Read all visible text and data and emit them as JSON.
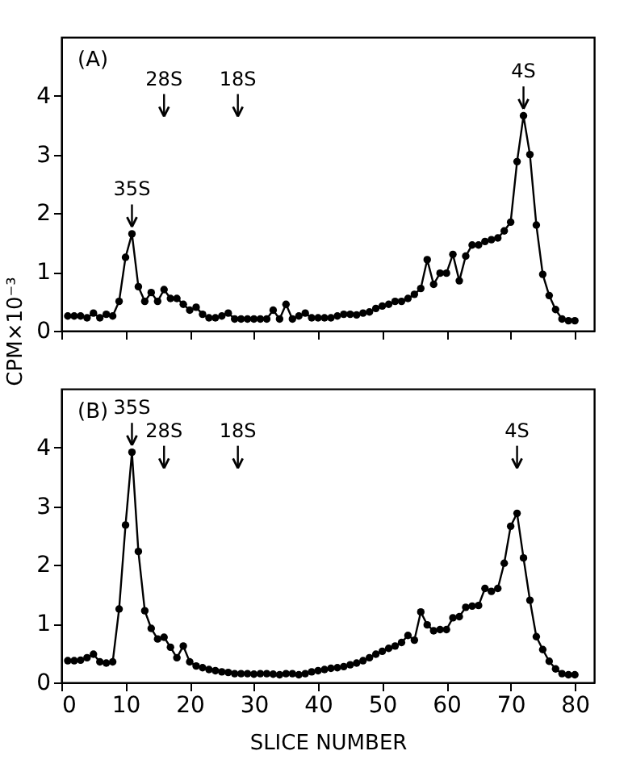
{
  "chart_data": [
    {
      "type": "line",
      "marker": "circle",
      "line_style": "solid",
      "grid": false,
      "tick_labels": "y",
      "ylabel": "CPM×10⁻³",
      "x": [
        1,
        2,
        3,
        4,
        5,
        6,
        7,
        8,
        9,
        10,
        11,
        12,
        13,
        14,
        15,
        16,
        17,
        18,
        19,
        20,
        21,
        22,
        23,
        24,
        25,
        26,
        27,
        28,
        29,
        30,
        31,
        32,
        33,
        34,
        35,
        36,
        37,
        38,
        39,
        40,
        41,
        42,
        43,
        44,
        45,
        46,
        47,
        48,
        49,
        50,
        51,
        52,
        53,
        54,
        55,
        56,
        57,
        58,
        59,
        60,
        61,
        62,
        63,
        64,
        65,
        66,
        67,
        68,
        69,
        70,
        71,
        72,
        73,
        74,
        75,
        76,
        77,
        78,
        79,
        80
      ],
      "series": [
        {
          "color": "#000000",
          "values": [
            0.25,
            0.25,
            0.25,
            0.22,
            0.3,
            0.22,
            0.28,
            0.25,
            0.5,
            1.25,
            1.65,
            0.75,
            0.5,
            0.65,
            0.5,
            0.7,
            0.55,
            0.55,
            0.45,
            0.35,
            0.4,
            0.28,
            0.22,
            0.22,
            0.25,
            0.3,
            0.2,
            0.2,
            0.2,
            0.2,
            0.2,
            0.2,
            0.35,
            0.2,
            0.45,
            0.2,
            0.25,
            0.3,
            0.22,
            0.22,
            0.22,
            0.22,
            0.25,
            0.28,
            0.28,
            0.27,
            0.3,
            0.32,
            0.38,
            0.42,
            0.45,
            0.5,
            0.5,
            0.55,
            0.62,
            0.72,
            1.21,
            0.79,
            0.98,
            0.98,
            1.3,
            0.85,
            1.27,
            1.46,
            1.46,
            1.52,
            1.55,
            1.58,
            1.7,
            1.85,
            2.88,
            3.66,
            3.0,
            1.8,
            0.96,
            0.6,
            0.36,
            0.2,
            0.17,
            0.17
          ]
        }
      ],
      "xlim": [
        0,
        83
      ],
      "xticks": [
        0,
        10,
        20,
        30,
        40,
        50,
        60,
        70,
        80
      ],
      "ylim": [
        0,
        5
      ],
      "yticks": [
        0,
        1,
        2,
        3,
        4
      ],
      "annotations": [
        "(A)",
        {
          "text": "35S",
          "x": 11,
          "y": 1.65
        },
        {
          "text": "28S",
          "x": 16
        },
        {
          "text": "18S",
          "x": 27.5
        },
        {
          "text": "4S",
          "x": 72,
          "y": 3.66
        }
      ]
    },
    {
      "type": "line",
      "marker": "circle",
      "line_style": "solid",
      "grid": false,
      "xlabel": "SLICE NUMBER",
      "x": [
        1,
        2,
        3,
        4,
        5,
        6,
        7,
        8,
        9,
        10,
        11,
        12,
        13,
        14,
        15,
        16,
        17,
        18,
        19,
        20,
        21,
        22,
        23,
        24,
        25,
        26,
        27,
        28,
        29,
        30,
        31,
        32,
        33,
        34,
        35,
        36,
        37,
        38,
        39,
        40,
        41,
        42,
        43,
        44,
        45,
        46,
        47,
        48,
        49,
        50,
        51,
        52,
        53,
        54,
        55,
        56,
        57,
        58,
        59,
        60,
        61,
        62,
        63,
        64,
        65,
        66,
        67,
        68,
        69,
        70,
        71,
        72,
        73,
        74,
        75,
        76,
        77,
        78,
        79,
        80
      ],
      "series": [
        {
          "color": "#000000",
          "values": [
            0.37,
            0.37,
            0.38,
            0.42,
            0.48,
            0.35,
            0.33,
            0.35,
            1.25,
            2.68,
            3.92,
            2.23,
            1.22,
            0.92,
            0.74,
            0.77,
            0.6,
            0.42,
            0.62,
            0.35,
            0.28,
            0.25,
            0.22,
            0.2,
            0.18,
            0.17,
            0.15,
            0.15,
            0.15,
            0.14,
            0.15,
            0.15,
            0.14,
            0.13,
            0.15,
            0.15,
            0.13,
            0.15,
            0.18,
            0.2,
            0.22,
            0.24,
            0.25,
            0.27,
            0.3,
            0.33,
            0.37,
            0.42,
            0.48,
            0.53,
            0.58,
            0.62,
            0.68,
            0.8,
            0.72,
            1.2,
            0.98,
            0.88,
            0.9,
            0.9,
            1.1,
            1.12,
            1.28,
            1.3,
            1.31,
            1.6,
            1.55,
            1.6,
            2.03,
            2.66,
            2.88,
            2.12,
            1.4,
            0.78,
            0.56,
            0.36,
            0.23,
            0.15,
            0.13,
            0.13
          ]
        }
      ],
      "xlim": [
        0,
        83
      ],
      "xticks": [
        0,
        10,
        20,
        30,
        40,
        50,
        60,
        70,
        80
      ],
      "ylim": [
        0,
        5
      ],
      "yticks": [
        0,
        1,
        2,
        3,
        4
      ],
      "annotations": [
        "(B)",
        {
          "text": "35S",
          "x": 11,
          "y": 3.92
        },
        {
          "text": "28S",
          "x": 16
        },
        {
          "text": "18S",
          "x": 27.5
        },
        {
          "text": "4S",
          "x": 71
        }
      ]
    }
  ]
}
